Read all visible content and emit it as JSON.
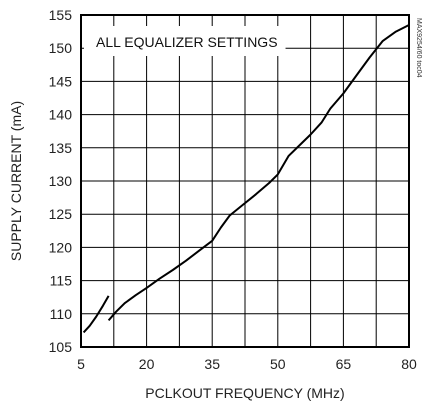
{
  "chart_data": {
    "type": "line",
    "title": "",
    "annotation": "ALL EQUALIZER SETTINGS",
    "side_label": "MAX9254/60 toc04",
    "xlabel": "PCLKOUT FREQUENCY (MHz)",
    "ylabel": "SUPPLY CURRENT (mA)",
    "xlim": [
      5,
      80
    ],
    "ylim": [
      105,
      155
    ],
    "xticks": [
      5,
      20,
      35,
      50,
      65,
      80
    ],
    "yticks": [
      105,
      110,
      115,
      120,
      125,
      130,
      135,
      140,
      145,
      150,
      155
    ],
    "grid": true,
    "colors": {
      "line": "#000000",
      "grid": "#000000",
      "background": "#ffffff"
    },
    "series": [
      {
        "points": [
          [
            5.6,
            107.2
          ],
          [
            7.0,
            108.2
          ],
          [
            8.5,
            109.6
          ],
          [
            10.0,
            111.2
          ],
          [
            11.3,
            112.7
          ]
        ]
      },
      {
        "points": [
          [
            11.3,
            109.0
          ],
          [
            13.0,
            110.3
          ],
          [
            15.0,
            111.6
          ],
          [
            17.5,
            112.8
          ],
          [
            20.0,
            113.9
          ],
          [
            23.0,
            115.3
          ],
          [
            26.0,
            116.6
          ],
          [
            29.0,
            118.0
          ],
          [
            32.0,
            119.5
          ],
          [
            35.0,
            121.0
          ],
          [
            37.0,
            123.0
          ],
          [
            39.0,
            124.8
          ],
          [
            42.0,
            126.4
          ],
          [
            45.0,
            128.0
          ],
          [
            48.0,
            129.7
          ],
          [
            50.0,
            131.0
          ],
          [
            52.5,
            133.8
          ],
          [
            55.0,
            135.4
          ],
          [
            57.5,
            137.0
          ],
          [
            60.0,
            138.8
          ],
          [
            62.0,
            140.9
          ],
          [
            65.0,
            143.2
          ],
          [
            68.0,
            145.9
          ],
          [
            71.0,
            148.6
          ],
          [
            74.0,
            151.1
          ],
          [
            77.0,
            152.5
          ],
          [
            80.0,
            153.5
          ]
        ]
      }
    ]
  }
}
